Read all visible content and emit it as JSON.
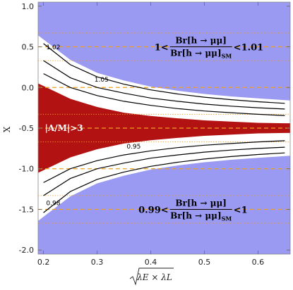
{
  "chart_data": {
    "type": "area",
    "title": "",
    "xlabel": "√(λE × λL)",
    "ylabel": "X",
    "xlim": [
      0.19,
      0.66
    ],
    "ylim": [
      -2.05,
      1.05
    ],
    "x_ticks": [
      0.2,
      0.3,
      0.4,
      0.5,
      0.6
    ],
    "x_tick_labels": [
      "0.2",
      "0.3",
      "0.4",
      "0.5",
      "0.6"
    ],
    "y_ticks": [
      1.0,
      0.5,
      0.0,
      -0.5,
      -1.0,
      -1.5,
      -2.0
    ],
    "y_tick_labels": [
      "1.0",
      "0.5",
      "0.0",
      "-0.5",
      "-1.0",
      "-1.5",
      "-2.0"
    ],
    "grid": false,
    "center": -0.5,
    "colors": {
      "excluded_band": "#9a9af2",
      "ratio_region": "#b31212",
      "dashed_lines": "#f0a020",
      "dotted_lines": "#f09a2a",
      "contours": "#000000"
    },
    "series": [
      {
        "kind": "band",
        "x": [
          0.19,
          0.25,
          0.3,
          0.35,
          0.4,
          0.45,
          0.5,
          0.55,
          0.6,
          0.65,
          0.66
        ],
        "upper": [
          0.64,
          0.34,
          0.18,
          0.085,
          0.01,
          -0.04,
          -0.08,
          -0.11,
          -0.135,
          -0.155,
          -0.16
        ]
      },
      {
        "kind": "band",
        "x": [
          0.19,
          0.25,
          0.3,
          0.35,
          0.4,
          0.45,
          0.5,
          0.55,
          0.6,
          0.65,
          0.66
        ],
        "lower": [
          -1.64,
          -1.34,
          -1.18,
          -1.085,
          -1.01,
          -0.96,
          -0.92,
          -0.89,
          -0.865,
          -0.845,
          -0.84
        ]
      },
      {
        "kind": "region",
        "x": [
          0.19,
          0.25,
          0.3,
          0.35,
          0.4,
          0.45,
          0.5,
          0.55,
          0.6,
          0.65,
          0.66
        ],
        "upper": [
          0.05,
          -0.14,
          -0.24,
          -0.31,
          -0.35,
          -0.38,
          -0.405,
          -0.42,
          -0.435,
          -0.44,
          -0.44
        ],
        "lower": [
          -1.05,
          -0.86,
          -0.76,
          -0.69,
          -0.65,
          -0.62,
          -0.595,
          -0.58,
          -0.565,
          -0.56,
          -0.56
        ]
      },
      {
        "kind": "contour",
        "label": "1.02",
        "x": [
          0.2,
          0.25,
          0.3,
          0.35,
          0.4,
          0.45,
          0.5,
          0.55,
          0.6,
          0.65
        ],
        "y": [
          0.54,
          0.28,
          0.13,
          0.04,
          -0.03,
          -0.08,
          -0.12,
          -0.15,
          -0.175,
          -0.195
        ]
      },
      {
        "kind": "contour",
        "x": [
          0.2,
          0.25,
          0.3,
          0.35,
          0.4,
          0.45,
          0.5,
          0.55,
          0.6,
          0.65
        ],
        "y": [
          0.33,
          0.12,
          0.0,
          -0.07,
          -0.13,
          -0.17,
          -0.205,
          -0.23,
          -0.25,
          -0.265
        ]
      },
      {
        "kind": "contour",
        "label": "1.05",
        "x": [
          0.2,
          0.25,
          0.3,
          0.35,
          0.4,
          0.45,
          0.5,
          0.55,
          0.6,
          0.65
        ],
        "y": [
          0.17,
          0.0,
          -0.1,
          -0.17,
          -0.22,
          -0.26,
          -0.29,
          -0.31,
          -0.33,
          -0.345
        ]
      },
      {
        "kind": "contour",
        "label": "0.95",
        "x": [
          0.2,
          0.25,
          0.3,
          0.35,
          0.4,
          0.45,
          0.5,
          0.55,
          0.6,
          0.65
        ],
        "y": [
          -1.17,
          -1.0,
          -0.9,
          -0.83,
          -0.78,
          -0.74,
          -0.71,
          -0.69,
          -0.67,
          -0.655
        ]
      },
      {
        "kind": "contour",
        "x": [
          0.2,
          0.25,
          0.3,
          0.35,
          0.4,
          0.45,
          0.5,
          0.55,
          0.6,
          0.65
        ],
        "y": [
          -1.33,
          -1.12,
          -1.0,
          -0.93,
          -0.87,
          -0.83,
          -0.795,
          -0.77,
          -0.75,
          -0.735
        ]
      },
      {
        "kind": "contour",
        "label": "0.98",
        "x": [
          0.2,
          0.25,
          0.3,
          0.35,
          0.4,
          0.45,
          0.5,
          0.55,
          0.6,
          0.65
        ],
        "y": [
          -1.54,
          -1.28,
          -1.13,
          -1.04,
          -0.97,
          -0.92,
          -0.88,
          -0.85,
          -0.825,
          -0.805
        ]
      }
    ],
    "dashed_y": [
      0.5,
      0.0,
      -0.5,
      -1.0,
      -1.5
    ],
    "dotted_y": [
      0.67,
      0.33,
      -0.33,
      -0.67,
      -1.33,
      -1.67
    ],
    "annotations": {
      "top_formula": {
        "prefix": "1<",
        "numerator": "Br[h → μμ]",
        "denominator": "Br[h → μμ]",
        "denominator_sub": "SM",
        "suffix": "<1.01",
        "x": 0.47,
        "y": 0.5
      },
      "middle": {
        "text": "|A/M|>3",
        "x": 0.225,
        "y": -0.5
      },
      "bottom_formula": {
        "prefix": "0.99<",
        "numerator": "Br[h → μμ]",
        "denominator": "Br[h → μμ]",
        "denominator_sub": "SM",
        "suffix": "<1",
        "x": 0.47,
        "y": -1.5
      }
    }
  }
}
